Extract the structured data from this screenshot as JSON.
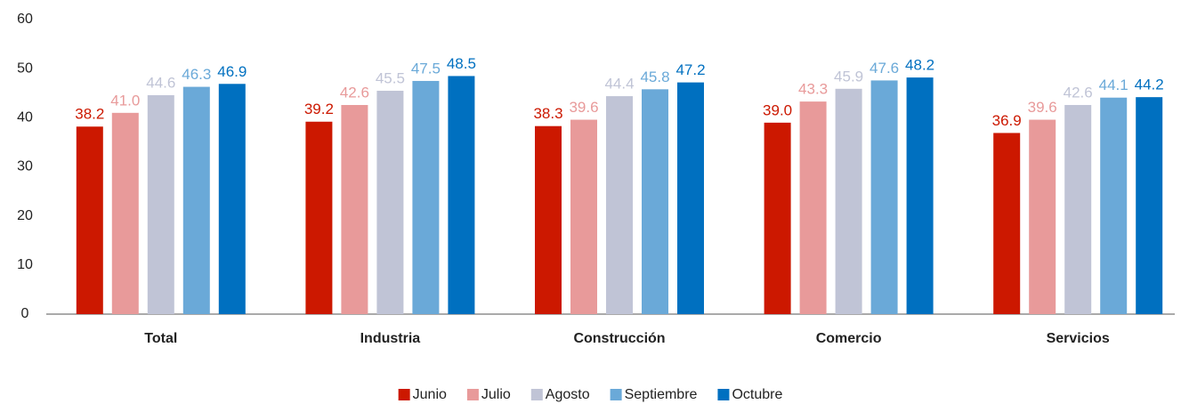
{
  "chart_data": {
    "type": "bar",
    "categories": [
      "Total",
      "Industria",
      "Construcción",
      "Comercio",
      "Servicios"
    ],
    "series": [
      {
        "name": "Junio",
        "color": "#cc1800",
        "values": [
          38.2,
          39.2,
          38.3,
          39.0,
          36.9
        ],
        "value_labels": [
          "38.2",
          "39.2",
          "38.3",
          "39.0",
          "36.9"
        ]
      },
      {
        "name": "Julio",
        "color": "#e89a9a",
        "values": [
          41.0,
          42.6,
          39.6,
          43.3,
          39.6
        ],
        "value_labels": [
          "41.0",
          "42.6",
          "39.6",
          "43.3",
          "39.6"
        ]
      },
      {
        "name": "Agosto",
        "color": "#c0c4d6",
        "values": [
          44.6,
          45.5,
          44.4,
          45.9,
          42.6
        ],
        "value_labels": [
          "44.6",
          "45.5",
          "44.4",
          "45.9",
          "42.6"
        ]
      },
      {
        "name": "Septiembre",
        "color": "#6aa9d8",
        "values": [
          46.3,
          47.5,
          45.8,
          47.6,
          44.1
        ],
        "value_labels": [
          "46.3",
          "47.5",
          "45.8",
          "47.6",
          "44.1"
        ]
      },
      {
        "name": "Octubre",
        "color": "#0070c0",
        "values": [
          46.9,
          48.5,
          47.2,
          48.2,
          44.2
        ],
        "value_labels": [
          "46.9",
          "48.5",
          "47.2",
          "48.2",
          "44.2"
        ]
      }
    ],
    "ylim": [
      0,
      60
    ],
    "yticks": [
      0,
      10,
      20,
      30,
      40,
      50,
      60
    ],
    "grid": false,
    "legend": "bottom"
  }
}
